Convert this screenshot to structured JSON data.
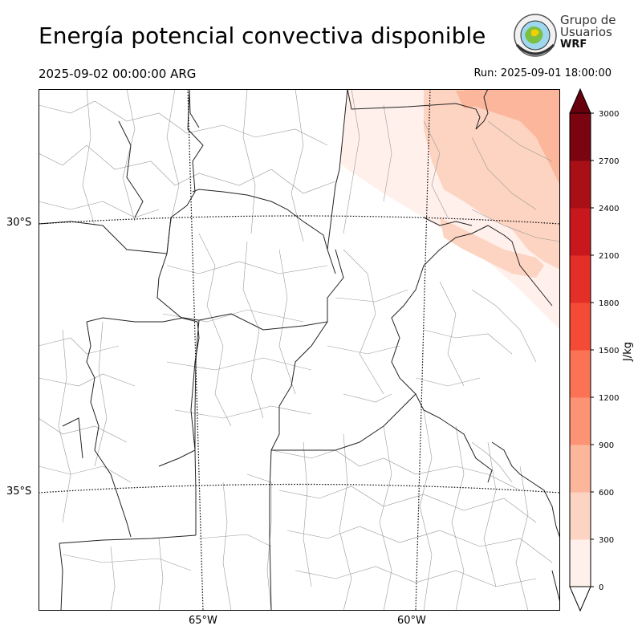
{
  "header": {
    "title": "Energía potencial convectiva disponible",
    "valid_time": "2025-09-02 00:00:00 ARG",
    "run_time": "Run: 2025-09-01 18:00:00"
  },
  "logo": {
    "line1": "Grupo de",
    "line2": "Usuarios",
    "line3": "WRF"
  },
  "map": {
    "lat_labels": [
      "30°S",
      "35°S"
    ],
    "lon_labels": [
      "65°W",
      "60°W"
    ]
  },
  "colorbar": {
    "unit": "J/kg",
    "ticks": [
      "0",
      "300",
      "600",
      "900",
      "1200",
      "1500",
      "1800",
      "2100",
      "2400",
      "2700",
      "3000"
    ],
    "colors": [
      "#fff0eb",
      "#fdd3c1",
      "#fcb69b",
      "#fc9374",
      "#fb7354",
      "#f34b35",
      "#e32f27",
      "#c9181d",
      "#a81016",
      "#7a0510"
    ],
    "over_color": "#67000d",
    "under_color": "#ffffff"
  }
}
